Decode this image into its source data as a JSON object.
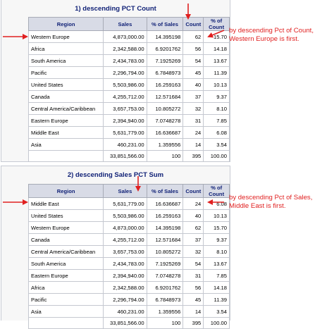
{
  "report1": {
    "caption": "1) descending PCT Count",
    "headers": {
      "region": "Region",
      "sales": "Sales",
      "pct_sales": "% of Sales",
      "count": "Count",
      "pct_count": "% of Count"
    },
    "rows": [
      {
        "region": "Western Europe",
        "sales": "4,873,000.00",
        "pct_sales": "14.395198",
        "count": "62",
        "pct_count": "15.70"
      },
      {
        "region": "Africa",
        "sales": "2,342,588.00",
        "pct_sales": "6.9201762",
        "count": "56",
        "pct_count": "14.18"
      },
      {
        "region": "South America",
        "sales": "2,434,783.00",
        "pct_sales": "7.1925269",
        "count": "54",
        "pct_count": "13.67"
      },
      {
        "region": "Pacific",
        "sales": "2,296,794.00",
        "pct_sales": "6.7848973",
        "count": "45",
        "pct_count": "11.39"
      },
      {
        "region": "United States",
        "sales": "5,503,986.00",
        "pct_sales": "16.259163",
        "count": "40",
        "pct_count": "10.13"
      },
      {
        "region": "Canada",
        "sales": "4,255,712.00",
        "pct_sales": "12.571684",
        "count": "37",
        "pct_count": "9.37"
      },
      {
        "region": "Central America/Caribbean",
        "sales": "3,657,753.00",
        "pct_sales": "10.805272",
        "count": "32",
        "pct_count": "8.10"
      },
      {
        "region": "Eastern Europe",
        "sales": "2,394,940.00",
        "pct_sales": "7.0748278",
        "count": "31",
        "pct_count": "7.85"
      },
      {
        "region": "Middle East",
        "sales": "5,631,779.00",
        "pct_sales": "16.636687",
        "count": "24",
        "pct_count": "6.08"
      },
      {
        "region": "Asia",
        "sales": "460,231.00",
        "pct_sales": "1.359556",
        "count": "14",
        "pct_count": "3.54"
      }
    ],
    "total": {
      "region": "",
      "sales": "33,851,566.00",
      "pct_sales": "100",
      "count": "395",
      "pct_count": "100.00"
    }
  },
  "report2": {
    "caption": "2) descending Sales PCT Sum",
    "headers": {
      "region": "Region",
      "sales": "Sales",
      "pct_sales": "% of Sales",
      "count": "Count",
      "pct_count": "% of Count"
    },
    "rows": [
      {
        "region": "Middle East",
        "sales": "5,631,779.00",
        "pct_sales": "16.636687",
        "count": "24",
        "pct_count": "6.08"
      },
      {
        "region": "United States",
        "sales": "5,503,986.00",
        "pct_sales": "16.259163",
        "count": "40",
        "pct_count": "10.13"
      },
      {
        "region": "Western Europe",
        "sales": "4,873,000.00",
        "pct_sales": "14.395198",
        "count": "62",
        "pct_count": "15.70"
      },
      {
        "region": "Canada",
        "sales": "4,255,712.00",
        "pct_sales": "12.571684",
        "count": "37",
        "pct_count": "9.37"
      },
      {
        "region": "Central America/Caribbean",
        "sales": "3,657,753.00",
        "pct_sales": "10.805272",
        "count": "32",
        "pct_count": "8.10"
      },
      {
        "region": "South America",
        "sales": "2,434,783.00",
        "pct_sales": "7.1925269",
        "count": "54",
        "pct_count": "13.67"
      },
      {
        "region": "Eastern Europe",
        "sales": "2,394,940.00",
        "pct_sales": "7.0748278",
        "count": "31",
        "pct_count": "7.85"
      },
      {
        "region": "Africa",
        "sales": "2,342,588.00",
        "pct_sales": "6.9201762",
        "count": "56",
        "pct_count": "14.18"
      },
      {
        "region": "Pacific",
        "sales": "2,296,794.00",
        "pct_sales": "6.7848973",
        "count": "45",
        "pct_count": "11.39"
      },
      {
        "region": "Asia",
        "sales": "460,231.00",
        "pct_sales": "1.359556",
        "count": "14",
        "pct_count": "3.54"
      }
    ],
    "total": {
      "region": "",
      "sales": "33,851,566.00",
      "pct_sales": "100",
      "count": "395",
      "pct_count": "100.00"
    }
  },
  "annotations": {
    "note1": [
      "by descending Pct of Count,",
      "Western Europe is first."
    ],
    "note2": [
      "by descending Pct of Sales,",
      "Middle East is first."
    ],
    "color": "#e02020"
  },
  "theme": {
    "header_bg": "#d8dbe6",
    "header_text": "#112277",
    "panel_bg": "#f7f7f7"
  }
}
